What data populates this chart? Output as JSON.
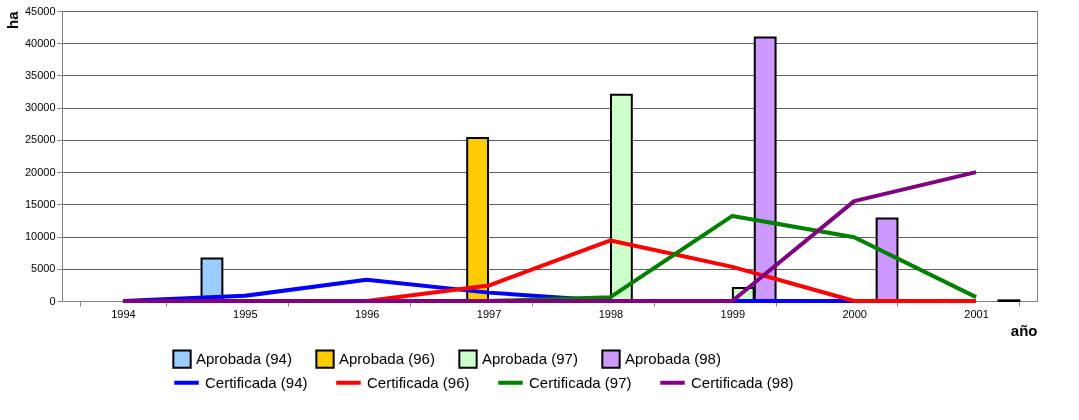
{
  "chart_data": {
    "type": "bar",
    "xlabel": "año",
    "ylabel": "ha",
    "categories": [
      "1994",
      "1995",
      "1996",
      "1997",
      "1998",
      "1999",
      "2000",
      "2001"
    ],
    "series": [
      {
        "name": "Aprobada (94)",
        "color": "#99ccff",
        "values": [
          null,
          6600,
          null,
          null,
          null,
          null,
          null,
          null
        ]
      },
      {
        "name": "Aprobada (96)",
        "color": "#ffcc00",
        "values": [
          null,
          null,
          null,
          25300,
          null,
          null,
          null,
          null
        ]
      },
      {
        "name": "Aprobada (97)",
        "color": "#ccffcc",
        "values": [
          null,
          null,
          null,
          null,
          32000,
          2000,
          null,
          null
        ]
      },
      {
        "name": "Aprobada (98)",
        "color": "#cc99ff",
        "values": [
          null,
          null,
          null,
          null,
          null,
          40900,
          12800,
          100
        ]
      },
      {
        "name": "Certificada (94)",
        "type": "line",
        "color": "#0000ff",
        "values": [
          0,
          800,
          3300,
          1300,
          0,
          0,
          0,
          null
        ]
      },
      {
        "name": "Certificada (96)",
        "type": "line",
        "color": "#ff0000",
        "values": [
          0,
          0,
          0,
          2400,
          9400,
          5300,
          0,
          0
        ]
      },
      {
        "name": "Certificada (97)",
        "type": "line",
        "color": "#008000",
        "values": [
          null,
          null,
          0,
          0,
          600,
          13200,
          9900,
          600
        ]
      },
      {
        "name": "Certificada (98)",
        "type": "line",
        "color": "#800080",
        "values": [
          0,
          0,
          0,
          0,
          0,
          0,
          15500,
          20000
        ]
      }
    ],
    "ylim": [
      0,
      45000
    ],
    "yticks": [
      0,
      5000,
      10000,
      15000,
      20000,
      25000,
      30000,
      35000,
      40000,
      45000
    ],
    "grid": "y",
    "legend": "bottom",
    "marker": "none",
    "line_style": "solid"
  }
}
